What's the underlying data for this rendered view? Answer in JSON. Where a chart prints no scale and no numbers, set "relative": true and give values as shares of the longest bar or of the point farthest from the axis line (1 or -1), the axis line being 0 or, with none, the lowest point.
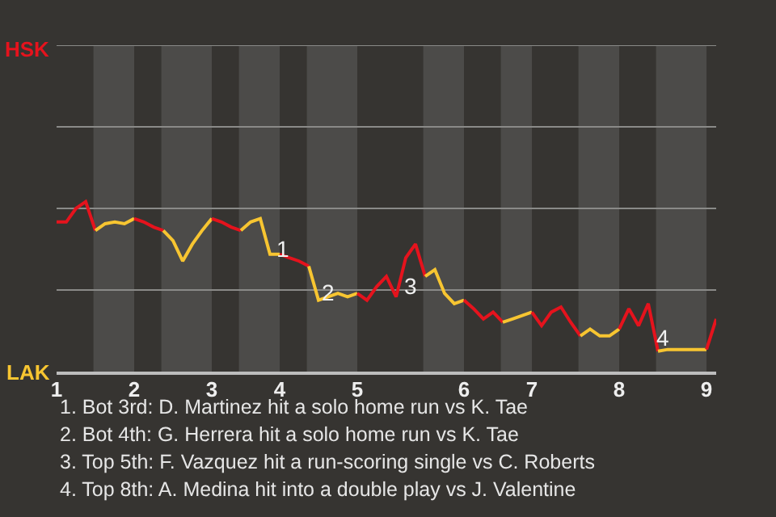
{
  "chart_data": {
    "type": "line",
    "relative": true,
    "categories": [
      "1",
      null,
      null,
      null,
      null,
      null,
      null,
      null,
      "2",
      null,
      null,
      null,
      null,
      null,
      null,
      null,
      "3",
      null,
      null,
      null,
      null,
      null,
      null,
      "4",
      null,
      null,
      null,
      null,
      null,
      null,
      null,
      "5",
      null,
      null,
      null,
      null,
      null,
      null,
      null,
      null,
      null,
      null,
      "6",
      null,
      null,
      null,
      null,
      null,
      null,
      "7",
      null,
      null,
      null,
      null,
      null,
      null,
      null,
      null,
      "8",
      null,
      null,
      null,
      null,
      null,
      null,
      null,
      null,
      "9",
      null
    ],
    "series": [
      {
        "color": "#e5131d",
        "values": [
          0.88,
          0.88,
          0.96,
          1,
          0.83,
          null,
          null,
          null,
          null,
          null,
          null,
          null,
          null,
          null,
          null,
          null,
          null,
          null,
          null,
          null,
          null,
          null,
          null,
          null,
          null,
          null,
          null,
          null,
          null,
          null,
          null,
          null,
          null,
          null,
          null,
          null,
          null,
          null,
          null,
          null,
          null,
          null,
          null,
          null,
          null,
          null,
          null,
          null,
          null,
          null,
          null,
          null,
          null,
          null,
          null,
          null,
          null,
          null,
          null,
          null,
          null,
          null,
          null,
          null,
          null,
          null,
          null,
          null,
          null
        ]
      },
      {
        "color": "#f7c531",
        "values": [
          null,
          null,
          null,
          null,
          0.83,
          0.87,
          0.88,
          0.87,
          0.9,
          null,
          null,
          null,
          null,
          null,
          null,
          null,
          null,
          null,
          null,
          null,
          null,
          null,
          null,
          null,
          null,
          null,
          null,
          null,
          null,
          null,
          null,
          null,
          null,
          null,
          null,
          null,
          null,
          null,
          null,
          null,
          null,
          null,
          null,
          null,
          null,
          null,
          null,
          null,
          null,
          null,
          null,
          null,
          null,
          null,
          null,
          null,
          null,
          null,
          null,
          null,
          null,
          null,
          null,
          null,
          null,
          null,
          null,
          null,
          null
        ]
      },
      {
        "color": "#e5131d",
        "values": [
          null,
          null,
          null,
          null,
          null,
          null,
          null,
          null,
          0.9,
          0.88,
          0.85,
          0.83,
          null,
          null,
          null,
          null,
          null,
          null,
          null,
          null,
          null,
          null,
          null,
          null,
          null,
          null,
          null,
          null,
          null,
          null,
          null,
          null,
          null,
          null,
          null,
          null,
          null,
          null,
          null,
          null,
          null,
          null,
          null,
          null,
          null,
          null,
          null,
          null,
          null,
          null,
          null,
          null,
          null,
          null,
          null,
          null,
          null,
          null,
          null,
          null,
          null,
          null,
          null,
          null,
          null,
          null,
          null,
          null,
          null
        ]
      },
      {
        "color": "#f7c531",
        "values": [
          null,
          null,
          null,
          null,
          null,
          null,
          null,
          null,
          null,
          null,
          null,
          0.83,
          0.77,
          0.65,
          0.75,
          0.83,
          0.9,
          null,
          null,
          null,
          null,
          null,
          null,
          null,
          null,
          null,
          null,
          null,
          null,
          null,
          null,
          null,
          null,
          null,
          null,
          null,
          null,
          null,
          null,
          null,
          null,
          null,
          null,
          null,
          null,
          null,
          null,
          null,
          null,
          null,
          null,
          null,
          null,
          null,
          null,
          null,
          null,
          null,
          null,
          null,
          null,
          null,
          null,
          null,
          null,
          null,
          null,
          null,
          null
        ]
      },
      {
        "color": "#e5131d",
        "values": [
          null,
          null,
          null,
          null,
          null,
          null,
          null,
          null,
          null,
          null,
          null,
          null,
          null,
          null,
          null,
          null,
          0.9,
          0.88,
          0.85,
          0.83,
          null,
          null,
          null,
          null,
          null,
          null,
          null,
          null,
          null,
          null,
          null,
          null,
          null,
          null,
          null,
          null,
          null,
          null,
          null,
          null,
          null,
          null,
          null,
          null,
          null,
          null,
          null,
          null,
          null,
          null,
          null,
          null,
          null,
          null,
          null,
          null,
          null,
          null,
          null,
          null,
          null,
          null,
          null,
          null,
          null,
          null,
          null,
          null,
          null
        ]
      },
      {
        "color": "#f7c531",
        "values": [
          null,
          null,
          null,
          null,
          null,
          null,
          null,
          null,
          null,
          null,
          null,
          null,
          null,
          null,
          null,
          null,
          null,
          null,
          null,
          0.83,
          0.88,
          0.9,
          0.69,
          0.69,
          null,
          null,
          null,
          null,
          null,
          null,
          null,
          null,
          null,
          null,
          null,
          null,
          null,
          null,
          null,
          null,
          null,
          null,
          null,
          null,
          null,
          null,
          null,
          null,
          null,
          null,
          null,
          null,
          null,
          null,
          null,
          null,
          null,
          null,
          null,
          null,
          null,
          null,
          null,
          null,
          null,
          null,
          null,
          null,
          null
        ]
      },
      {
        "color": "#e5131d",
        "values": [
          null,
          null,
          null,
          null,
          null,
          null,
          null,
          null,
          null,
          null,
          null,
          null,
          null,
          null,
          null,
          null,
          null,
          null,
          null,
          null,
          null,
          null,
          null,
          0.69,
          0.67,
          0.65,
          0.62,
          null,
          null,
          null,
          null,
          null,
          null,
          null,
          null,
          null,
          null,
          null,
          null,
          null,
          null,
          null,
          null,
          null,
          null,
          null,
          null,
          null,
          null,
          null,
          null,
          null,
          null,
          null,
          null,
          null,
          null,
          null,
          null,
          null,
          null,
          null,
          null,
          null,
          null,
          null,
          null,
          null,
          null
        ]
      },
      {
        "color": "#f7c531",
        "values": [
          null,
          null,
          null,
          null,
          null,
          null,
          null,
          null,
          null,
          null,
          null,
          null,
          null,
          null,
          null,
          null,
          null,
          null,
          null,
          null,
          null,
          null,
          null,
          null,
          null,
          null,
          0.62,
          0.42,
          0.44,
          0.46,
          0.44,
          0.46,
          null,
          null,
          null,
          null,
          null,
          null,
          null,
          null,
          null,
          null,
          null,
          null,
          null,
          null,
          null,
          null,
          null,
          null,
          null,
          null,
          null,
          null,
          null,
          null,
          null,
          null,
          null,
          null,
          null,
          null,
          null,
          null,
          null,
          null,
          null,
          null,
          null
        ]
      },
      {
        "color": "#e5131d",
        "values": [
          null,
          null,
          null,
          null,
          null,
          null,
          null,
          null,
          null,
          null,
          null,
          null,
          null,
          null,
          null,
          null,
          null,
          null,
          null,
          null,
          null,
          null,
          null,
          null,
          null,
          null,
          null,
          null,
          null,
          null,
          null,
          0.46,
          0.42,
          0.5,
          0.56,
          0.44,
          0.67,
          0.75,
          0.56,
          null,
          null,
          null,
          null,
          null,
          null,
          null,
          null,
          null,
          null,
          null,
          null,
          null,
          null,
          null,
          null,
          null,
          null,
          null,
          null,
          null,
          null,
          null,
          null,
          null,
          null,
          null,
          null,
          null,
          null
        ]
      },
      {
        "color": "#f7c531",
        "values": [
          null,
          null,
          null,
          null,
          null,
          null,
          null,
          null,
          null,
          null,
          null,
          null,
          null,
          null,
          null,
          null,
          null,
          null,
          null,
          null,
          null,
          null,
          null,
          null,
          null,
          null,
          null,
          null,
          null,
          null,
          null,
          null,
          null,
          null,
          null,
          null,
          null,
          null,
          0.56,
          0.6,
          0.46,
          0.4,
          0.42,
          null,
          null,
          null,
          null,
          null,
          null,
          null,
          null,
          null,
          null,
          null,
          null,
          null,
          null,
          null,
          null,
          null,
          null,
          null,
          null,
          null,
          null,
          null,
          null,
          null,
          null
        ]
      },
      {
        "color": "#e5131d",
        "values": [
          null,
          null,
          null,
          null,
          null,
          null,
          null,
          null,
          null,
          null,
          null,
          null,
          null,
          null,
          null,
          null,
          null,
          null,
          null,
          null,
          null,
          null,
          null,
          null,
          null,
          null,
          null,
          null,
          null,
          null,
          null,
          null,
          null,
          null,
          null,
          null,
          null,
          null,
          null,
          null,
          null,
          null,
          0.42,
          0.37,
          0.31,
          0.35,
          0.29,
          null,
          null,
          null,
          null,
          null,
          null,
          null,
          null,
          null,
          null,
          null,
          null,
          null,
          null,
          null,
          null,
          null,
          null,
          null,
          null,
          null,
          null
        ]
      },
      {
        "color": "#f7c531",
        "values": [
          null,
          null,
          null,
          null,
          null,
          null,
          null,
          null,
          null,
          null,
          null,
          null,
          null,
          null,
          null,
          null,
          null,
          null,
          null,
          null,
          null,
          null,
          null,
          null,
          null,
          null,
          null,
          null,
          null,
          null,
          null,
          null,
          null,
          null,
          null,
          null,
          null,
          null,
          null,
          null,
          null,
          null,
          null,
          null,
          null,
          null,
          0.29,
          0.31,
          0.33,
          0.35,
          null,
          null,
          null,
          null,
          null,
          null,
          null,
          null,
          null,
          null,
          null,
          null,
          null,
          null,
          null,
          null,
          null,
          null,
          null
        ]
      },
      {
        "color": "#e5131d",
        "values": [
          null,
          null,
          null,
          null,
          null,
          null,
          null,
          null,
          null,
          null,
          null,
          null,
          null,
          null,
          null,
          null,
          null,
          null,
          null,
          null,
          null,
          null,
          null,
          null,
          null,
          null,
          null,
          null,
          null,
          null,
          null,
          null,
          null,
          null,
          null,
          null,
          null,
          null,
          null,
          null,
          null,
          null,
          null,
          null,
          null,
          null,
          null,
          null,
          null,
          0.35,
          0.27,
          0.35,
          0.38,
          0.29,
          0.21,
          null,
          null,
          null,
          null,
          null,
          null,
          null,
          null,
          null,
          null,
          null,
          null,
          null,
          null
        ]
      },
      {
        "color": "#f7c531",
        "values": [
          null,
          null,
          null,
          null,
          null,
          null,
          null,
          null,
          null,
          null,
          null,
          null,
          null,
          null,
          null,
          null,
          null,
          null,
          null,
          null,
          null,
          null,
          null,
          null,
          null,
          null,
          null,
          null,
          null,
          null,
          null,
          null,
          null,
          null,
          null,
          null,
          null,
          null,
          null,
          null,
          null,
          null,
          null,
          null,
          null,
          null,
          null,
          null,
          null,
          null,
          null,
          null,
          null,
          null,
          0.21,
          0.25,
          0.21,
          0.21,
          0.25,
          null,
          null,
          null,
          null,
          null,
          null,
          null,
          null,
          null,
          null
        ]
      },
      {
        "color": "#e5131d",
        "values": [
          null,
          null,
          null,
          null,
          null,
          null,
          null,
          null,
          null,
          null,
          null,
          null,
          null,
          null,
          null,
          null,
          null,
          null,
          null,
          null,
          null,
          null,
          null,
          null,
          null,
          null,
          null,
          null,
          null,
          null,
          null,
          null,
          null,
          null,
          null,
          null,
          null,
          null,
          null,
          null,
          null,
          null,
          null,
          null,
          null,
          null,
          null,
          null,
          null,
          null,
          null,
          null,
          null,
          null,
          null,
          null,
          null,
          null,
          0.25,
          0.37,
          0.27,
          0.4,
          0.12,
          null,
          null,
          null,
          null,
          null,
          null
        ]
      },
      {
        "color": "#f7c531",
        "values": [
          null,
          null,
          null,
          null,
          null,
          null,
          null,
          null,
          null,
          null,
          null,
          null,
          null,
          null,
          null,
          null,
          null,
          null,
          null,
          null,
          null,
          null,
          null,
          null,
          null,
          null,
          null,
          null,
          null,
          null,
          null,
          null,
          null,
          null,
          null,
          null,
          null,
          null,
          null,
          null,
          null,
          null,
          null,
          null,
          null,
          null,
          null,
          null,
          null,
          null,
          null,
          null,
          null,
          null,
          null,
          null,
          null,
          null,
          null,
          null,
          null,
          null,
          0.12,
          0.13,
          0.13,
          0.13,
          0.13,
          0.13,
          null
        ]
      },
      {
        "color": "#e5131d",
        "values": [
          null,
          null,
          null,
          null,
          null,
          null,
          null,
          null,
          null,
          null,
          null,
          null,
          null,
          null,
          null,
          null,
          null,
          null,
          null,
          null,
          null,
          null,
          null,
          null,
          null,
          null,
          null,
          null,
          null,
          null,
          null,
          null,
          null,
          null,
          null,
          null,
          null,
          null,
          null,
          null,
          null,
          null,
          null,
          null,
          null,
          null,
          null,
          null,
          null,
          null,
          null,
          null,
          null,
          null,
          null,
          null,
          null,
          null,
          null,
          null,
          null,
          null,
          null,
          null,
          null,
          null,
          null,
          0.13,
          0.31
        ]
      }
    ],
    "ref_lines": [
      {
        "axis": "y",
        "value": 0.48,
        "color": "#8a8a88"
      },
      {
        "axis": "y",
        "value": 0.96,
        "color": "#8a8a88"
      },
      {
        "axis": "y",
        "value": 1.44,
        "color": "#8a8a88"
      },
      {
        "axis": "y",
        "value": 1.92,
        "color": "#8a8a88"
      }
    ],
    "annotations": [
      "HSK",
      "LAK",
      "1",
      "2",
      "3",
      "4",
      "1. Bot 3rd: D. Martinez hit a solo home run vs K. Tae",
      "2. Bot 4th: G. Herrera hit a solo home run vs K. Tae",
      "3. Top 5th: F. Vazquez hit a run-scoring single vs C. Roberts",
      "4. Top 8th: A. Medina hit into a double play vs J. Valentine"
    ]
  }
}
